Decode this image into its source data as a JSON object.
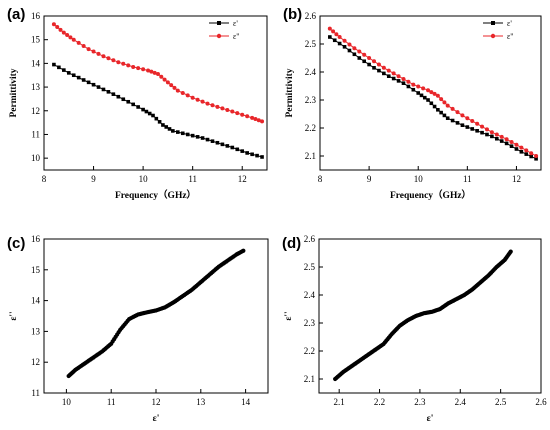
{
  "chart_data": [
    {
      "type": "line",
      "panel_label": "(a)",
      "xlabel": "Frequency（GHz）",
      "ylabel": "Permittivity",
      "xlim": [
        8,
        12.5
      ],
      "ylim": [
        9.5,
        16
      ],
      "xticks": [
        8,
        9,
        10,
        11,
        12
      ],
      "yticks": [
        10,
        11,
        12,
        13,
        14,
        15,
        16
      ],
      "legend": "top-right",
      "series": [
        {
          "name": "ε'",
          "color": "#000000",
          "marker": "square",
          "x": [
            8.2,
            8.5,
            8.8,
            9.1,
            9.4,
            9.7,
            10.0,
            10.2,
            10.4,
            10.6,
            10.9,
            11.2,
            11.5,
            11.8,
            12.1,
            12.4
          ],
          "y": [
            13.95,
            13.6,
            13.3,
            13.0,
            12.7,
            12.38,
            12.05,
            11.8,
            11.4,
            11.15,
            11.0,
            10.85,
            10.65,
            10.45,
            10.22,
            10.05
          ]
        },
        {
          "name": "ε''",
          "color": "#e8262a",
          "marker": "circle",
          "x": [
            8.2,
            8.4,
            8.6,
            8.9,
            9.2,
            9.5,
            9.8,
            10.1,
            10.3,
            10.5,
            10.7,
            11.0,
            11.3,
            11.6,
            11.9,
            12.2,
            12.4
          ],
          "y": [
            15.65,
            15.3,
            15.0,
            14.6,
            14.3,
            14.05,
            13.85,
            13.7,
            13.55,
            13.2,
            12.85,
            12.55,
            12.3,
            12.1,
            11.9,
            11.7,
            11.55
          ]
        }
      ]
    },
    {
      "type": "line",
      "panel_label": "(b)",
      "xlabel": "Frequency（GHz）",
      "ylabel": "Permittivity",
      "xlim": [
        8,
        12.5
      ],
      "ylim": [
        2.05,
        2.6
      ],
      "xticks": [
        8,
        9,
        10,
        11,
        12
      ],
      "yticks": [
        2.1,
        2.2,
        2.3,
        2.4,
        2.5,
        2.6
      ],
      "legend": "top-right",
      "series": [
        {
          "name": "ε'",
          "color": "#000000",
          "marker": "square",
          "x": [
            8.2,
            8.5,
            8.8,
            9.1,
            9.4,
            9.7,
            10.0,
            10.2,
            10.4,
            10.6,
            10.9,
            11.2,
            11.5,
            11.8,
            12.1,
            12.4
          ],
          "y": [
            2.525,
            2.49,
            2.45,
            2.415,
            2.385,
            2.36,
            2.325,
            2.3,
            2.265,
            2.235,
            2.21,
            2.19,
            2.17,
            2.145,
            2.115,
            2.09
          ]
        },
        {
          "name": "ε''",
          "color": "#e8262a",
          "marker": "circle",
          "x": [
            8.2,
            8.4,
            8.7,
            9.0,
            9.3,
            9.6,
            9.9,
            10.2,
            10.4,
            10.6,
            10.9,
            11.2,
            11.5,
            11.8,
            12.1,
            12.4
          ],
          "y": [
            2.555,
            2.525,
            2.485,
            2.45,
            2.415,
            2.385,
            2.355,
            2.335,
            2.315,
            2.28,
            2.245,
            2.215,
            2.185,
            2.16,
            2.13,
            2.1
          ]
        }
      ]
    },
    {
      "type": "scatter",
      "panel_label": "(c)",
      "xlabel": "ε'",
      "ylabel": "ε''",
      "xlim": [
        9.5,
        14.5
      ],
      "ylim": [
        11,
        16
      ],
      "xticks": [
        10,
        11,
        12,
        13,
        14
      ],
      "yticks": [
        11,
        12,
        13,
        14,
        15,
        16
      ],
      "series": [
        {
          "name": "",
          "color": "#000000",
          "x": [
            10.05,
            10.2,
            10.4,
            10.6,
            10.8,
            11.0,
            11.2,
            11.4,
            11.6,
            11.8,
            12.0,
            12.2,
            12.4,
            12.6,
            12.8,
            13.0,
            13.2,
            13.4,
            13.6,
            13.8,
            13.95
          ],
          "y": [
            11.55,
            11.75,
            11.95,
            12.15,
            12.35,
            12.6,
            13.05,
            13.4,
            13.55,
            13.62,
            13.68,
            13.78,
            13.95,
            14.15,
            14.35,
            14.6,
            14.85,
            15.1,
            15.3,
            15.5,
            15.62
          ]
        }
      ]
    },
    {
      "type": "scatter",
      "panel_label": "(d)",
      "xlabel": "ε'",
      "ylabel": "ε''",
      "xlim": [
        2.05,
        2.6
      ],
      "ylim": [
        2.05,
        2.6
      ],
      "xticks": [
        2.1,
        2.2,
        2.3,
        2.4,
        2.5,
        2.6
      ],
      "yticks": [
        2.1,
        2.2,
        2.3,
        2.4,
        2.5,
        2.6
      ],
      "series": [
        {
          "name": "",
          "color": "#000000",
          "x": [
            2.09,
            2.11,
            2.13,
            2.15,
            2.17,
            2.19,
            2.21,
            2.23,
            2.25,
            2.27,
            2.29,
            2.31,
            2.33,
            2.35,
            2.37,
            2.39,
            2.41,
            2.43,
            2.45,
            2.47,
            2.49,
            2.51,
            2.525
          ],
          "y": [
            2.1,
            2.125,
            2.145,
            2.165,
            2.185,
            2.205,
            2.225,
            2.26,
            2.29,
            2.31,
            2.325,
            2.335,
            2.34,
            2.35,
            2.37,
            2.385,
            2.4,
            2.42,
            2.445,
            2.47,
            2.5,
            2.525,
            2.555
          ]
        }
      ]
    }
  ]
}
